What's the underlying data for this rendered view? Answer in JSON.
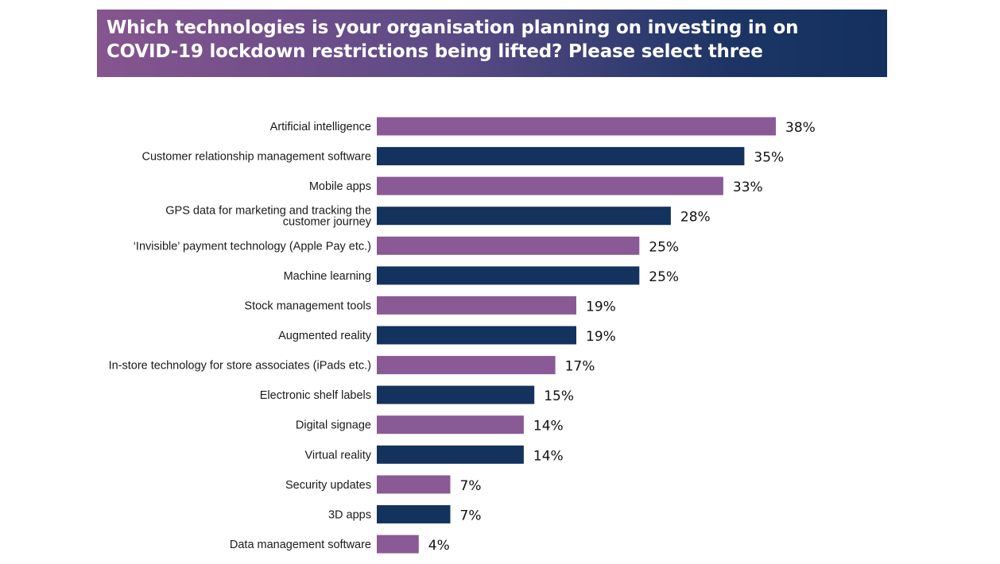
{
  "title": "Which technologies is your organisation planning on investing in on COVID-19 lockdown restrictions being lifted? Please select three",
  "colors": {
    "purple": "#8a5a96",
    "navy": "#14325e"
  },
  "chart_data": {
    "type": "bar",
    "orientation": "horizontal",
    "title": "Which technologies is your organisation planning on investing in on COVID-19 lockdown restrictions being lifted? Please select three",
    "xlabel": "",
    "ylabel": "",
    "xlim": [
      0,
      38
    ],
    "grid": false,
    "value_suffix": "%",
    "categories": [
      [
        "Artificial intelligence"
      ],
      [
        "Customer relationship management  software"
      ],
      [
        "Mobile apps"
      ],
      [
        "GPS data for marketing and tracking the",
        "customer journey"
      ],
      [
        "‘Invisible’ payment technology (Apple Pay etc.)"
      ],
      [
        "Machine learning"
      ],
      [
        "Stock management tools"
      ],
      [
        "Augmented reality"
      ],
      [
        "In-store technology for store associates (iPads etc.)"
      ],
      [
        "Electronic shelf labels"
      ],
      [
        "Digital signage"
      ],
      [
        "Virtual reality"
      ],
      [
        "Security updates"
      ],
      [
        "3D apps"
      ],
      [
        "Data management software"
      ]
    ],
    "values": [
      38,
      35,
      33,
      28,
      25,
      25,
      19,
      19,
      17,
      15,
      14,
      14,
      7,
      7,
      4
    ],
    "value_labels": [
      "38%",
      "35%",
      "33%",
      "28%",
      "25%",
      "25%",
      "19%",
      "19%",
      "17%",
      "15%",
      "14%",
      "14%",
      "7%",
      "7%",
      "4%"
    ],
    "bar_colors": [
      "purple",
      "navy",
      "purple",
      "navy",
      "purple",
      "navy",
      "purple",
      "navy",
      "purple",
      "navy",
      "purple",
      "navy",
      "purple",
      "navy",
      "purple"
    ]
  }
}
